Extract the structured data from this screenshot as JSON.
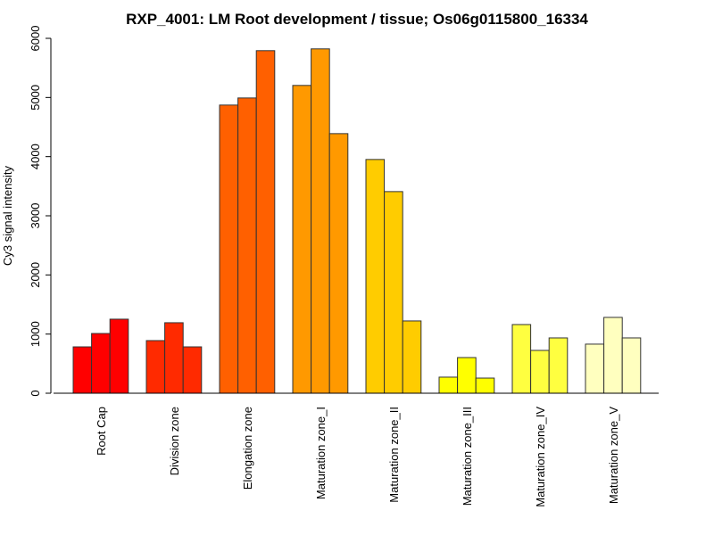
{
  "chart_data": {
    "type": "bar",
    "title": "RXP_4001: LM Root development / tissue; Os06g0115800_16334",
    "xlabel": "",
    "ylabel": "Cy3 signal intensity",
    "ylim": [
      0,
      6000
    ],
    "yticks": [
      0,
      1000,
      2000,
      3000,
      4000,
      5000,
      6000
    ],
    "grid": false,
    "categories": [
      "Root Cap",
      "Division zone",
      "Elongation zone",
      "Maturation zone_I",
      "Maturation zone_II",
      "Maturation zone_III",
      "Maturation zone_IV",
      "Maturation zone_V"
    ],
    "colors": [
      "#FF0000",
      "#FF2A00",
      "#FF6000",
      "#FF9900",
      "#FFCC00",
      "#FFFF00",
      "#FFFF40",
      "#FFFFBF"
    ],
    "replicates_per_group": 3,
    "values": [
      [
        784,
        1010,
        1252
      ],
      [
        890,
        1192,
        784
      ],
      [
        4872,
        4992,
        5792
      ],
      [
        5204,
        5822,
        4389
      ],
      [
        3952,
        3409,
        1222
      ],
      [
        272,
        603,
        256
      ],
      [
        1161,
        724,
        935
      ],
      [
        830,
        1282,
        935
      ]
    ]
  }
}
